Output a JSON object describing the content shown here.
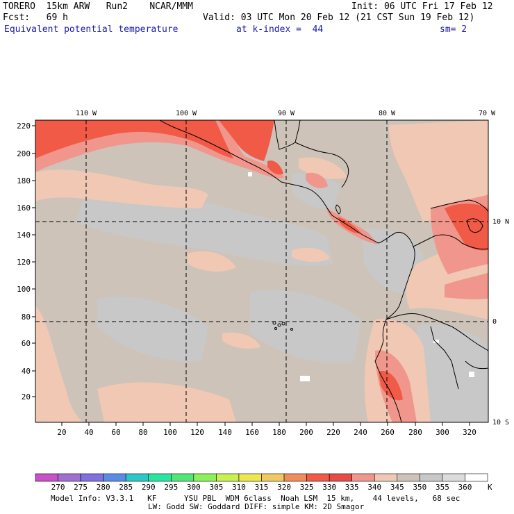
{
  "header": {
    "model": "TORERO  15km ARW   Run2    NCAR/MMM",
    "init": "Init: 06 UTC Fri 17 Feb 12",
    "fcst": "Fcst:   69 h",
    "valid": "Valid: 03 UTC Mon 20 Feb 12 (21 CST Sun 19 Feb 12)",
    "field": "Equivalent potential temperature",
    "kindex": "at k-index =  44",
    "sm": "sm= 2"
  },
  "axes": {
    "top_lon": [
      "110 W",
      "100 W",
      "90 W",
      "80 W",
      "70 W"
    ],
    "right_lat": [
      "10 N",
      "0",
      "10 S"
    ],
    "left_y": [
      "20",
      "40",
      "60",
      "80",
      "100",
      "120",
      "140",
      "160",
      "180",
      "200",
      "220"
    ],
    "bottom_x": [
      "20",
      "40",
      "60",
      "80",
      "100",
      "120",
      "140",
      "160",
      "180",
      "200",
      "220",
      "240",
      "260",
      "280",
      "300",
      "320"
    ]
  },
  "colorbar": {
    "labels": [
      "270",
      "275",
      "280",
      "285",
      "290",
      "295",
      "300",
      "305",
      "310",
      "315",
      "320",
      "325",
      "330",
      "335",
      "340",
      "345",
      "350",
      "355",
      "360"
    ],
    "unit": "K",
    "colors": [
      "#c850c8",
      "#a070d0",
      "#8070e0",
      "#5a8ce6",
      "#28c8c8",
      "#28e6a0",
      "#50e678",
      "#8cf05a",
      "#c8f050",
      "#f0e650",
      "#f0c864",
      "#f08c5a",
      "#f05a46",
      "#e64b46",
      "#f0968c",
      "#f0c8b4",
      "#cdc3b9",
      "#c8c8c8",
      "#dcdcdc",
      "#ffffff"
    ]
  },
  "footer": {
    "line1": "Model Info: V3.3.1   KF      YSU PBL  WDM 6class  Noah LSM  15 km,    44 levels,   68 sec",
    "line2": "LW: Godd SW: Goddard DIFF: simple KM: 2D Smagor"
  },
  "palette": {
    "ocean": "#cdc3b9",
    "gray": "#c8c8c8",
    "warm": "#f0c8b4",
    "salmon": "#f0968c",
    "red": "#f05a46"
  }
}
